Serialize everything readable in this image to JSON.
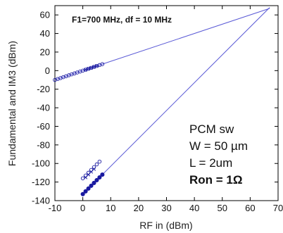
{
  "chart_data": {
    "type": "scatter",
    "xlabel": "RF  in (dBm)",
    "ylabel": "Fundamental and IM3 (dBm)",
    "xlim": [
      -10,
      70
    ],
    "ylim": [
      -140,
      70
    ],
    "x_ticks": [
      -10,
      0,
      10,
      20,
      30,
      40,
      50,
      60,
      70
    ],
    "y_ticks": [
      60,
      40,
      20,
      0,
      -20,
      -40,
      -60,
      -80,
      -100,
      -120,
      -140
    ],
    "grid": false,
    "colors": {
      "series": "#1a1aa0",
      "line": "#5a5ad6",
      "axes": "#000000"
    },
    "annotations": {
      "header": "F1=700 MHz, df = 10 MHz",
      "device": "PCM sw",
      "width": "W = 50 µm",
      "length": "L = 2um",
      "ron": "Ron = 1Ω"
    },
    "series": [
      {
        "marker": "open-circle",
        "x": [
          -10,
          -9,
          -8,
          -7,
          -6,
          -5,
          -4,
          -3,
          -2,
          -1,
          0,
          1,
          2,
          3,
          4,
          5,
          6,
          7
        ],
        "y": [
          -10,
          -9,
          -8,
          -7,
          -6,
          -5,
          -4,
          -3,
          -2,
          -1,
          0,
          1,
          2,
          3,
          4,
          5,
          6,
          7
        ]
      },
      {
        "marker": "cross",
        "x": [
          1,
          2,
          3,
          4,
          5
        ],
        "y": [
          1,
          2,
          3,
          4,
          5
        ]
      },
      {
        "marker": "open-circle",
        "x": [
          0,
          1,
          2,
          3,
          4,
          5,
          6
        ],
        "y": [
          -116,
          -113,
          -110,
          -107,
          -104,
          -101,
          -98
        ]
      },
      {
        "marker": "cross",
        "x": [
          1,
          2,
          3,
          4
        ],
        "y": [
          -115,
          -112,
          -109,
          -106
        ]
      },
      {
        "marker": "filled-circle",
        "x": [
          0,
          1,
          2,
          3,
          4,
          5,
          6,
          7
        ],
        "y": [
          -133,
          -130,
          -127,
          -124,
          -121,
          -118,
          -115,
          -112
        ]
      }
    ],
    "fit_lines": [
      {
        "x": [
          -10,
          67
        ],
        "y": [
          -10,
          67
        ]
      },
      {
        "x": [
          0,
          67
        ],
        "y": [
          -133,
          68
        ]
      }
    ]
  }
}
